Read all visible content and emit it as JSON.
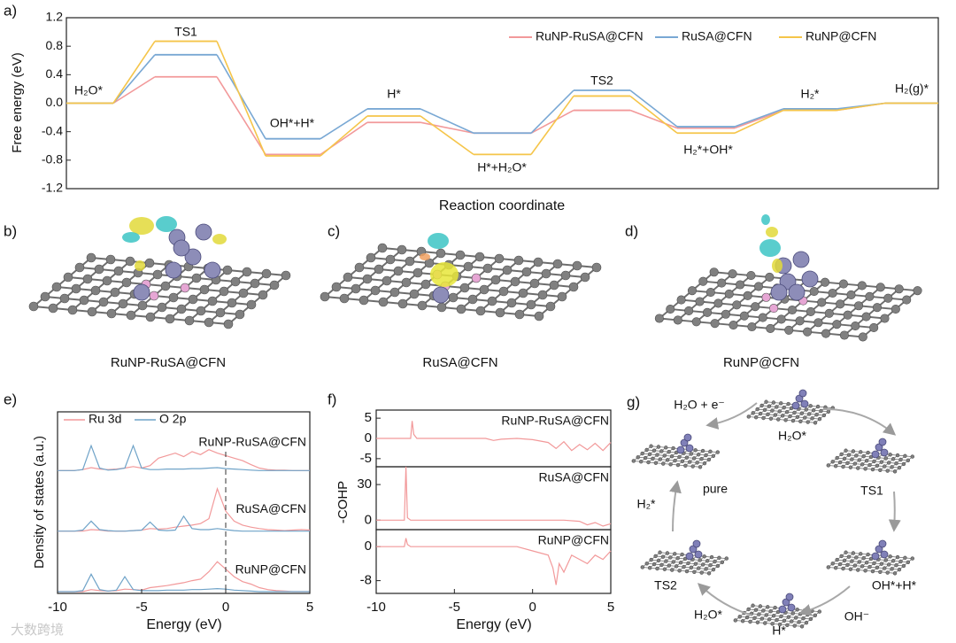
{
  "chart_data": [
    {
      "type": "line",
      "panel_label": "a)",
      "ylabel": "Free energy (eV)",
      "xlabel": "Reaction coordinate",
      "categories": [
        "H₂O*",
        "TS1",
        "OH*+H*",
        "H*",
        "H*+H₂O*",
        "TS2",
        "H₂*+OH*",
        "H₂*",
        "H₂(g)*"
      ],
      "ylim": [
        -1.2,
        1.2
      ],
      "yticks": [
        1.2,
        0.8,
        0.4,
        {
          "value": 0,
          "label": "0.0"
        },
        -0.4,
        -0.8,
        -1.2
      ],
      "series": [
        {
          "name": "RuNP-RuSA@CFN",
          "color": "#f2999a",
          "values": [
            0,
            0.37,
            -0.72,
            -0.27,
            -0.42,
            -0.1,
            -0.35,
            -0.1,
            0
          ]
        },
        {
          "name": "RuSA@CFN",
          "color": "#79a8d4",
          "values": [
            0,
            0.68,
            -0.5,
            -0.08,
            -0.42,
            0.18,
            -0.33,
            -0.08,
            0
          ]
        },
        {
          "name": "RuNP@CFN",
          "color": "#f5c54a",
          "values": [
            0,
            0.87,
            -0.74,
            -0.18,
            -0.72,
            0.1,
            -0.42,
            -0.1,
            0
          ]
        }
      ]
    },
    {
      "type": "stacked-line",
      "panel_label": "e)",
      "ylabel": "Density of states (a.u.)",
      "xlabel": "Energy (eV)",
      "xlim": [
        -10,
        5
      ],
      "xticks": [
        -10,
        -5,
        0,
        5
      ],
      "fermi_level": 0,
      "x": [
        -10,
        -9.5,
        -9,
        -8.5,
        -8,
        -7.5,
        -7,
        -6.5,
        -6,
        -5.5,
        -5,
        -4.5,
        -4,
        -3.5,
        -3,
        -2.5,
        -2,
        -1.5,
        -1,
        -0.5,
        0,
        0.5,
        1,
        1.5,
        2,
        2.5,
        3,
        3.5,
        4,
        4.5,
        5
      ],
      "panels": [
        {
          "label": "RuNP-RuSA@CFN",
          "ylim": [
            0,
            1
          ],
          "series": [
            {
              "name": "Ru 3d",
              "color": "#f2999a",
              "values": [
                0,
                0,
                0,
                0.02,
                0.06,
                0.03,
                0.02,
                0.03,
                0.05,
                0.08,
                0.05,
                0.1,
                0.25,
                0.3,
                0.35,
                0.28,
                0.38,
                0.32,
                0.42,
                0.35,
                0.3,
                0.25,
                0.2,
                0.12,
                0.05,
                0.02,
                0.01,
                0.01,
                0,
                0,
                0
              ]
            },
            {
              "name": "O 2p",
              "color": "#6fa3c8",
              "values": [
                0,
                0,
                0,
                0.02,
                0.5,
                0.05,
                0.01,
                0.02,
                0.05,
                0.5,
                0.05,
                0.02,
                0.02,
                0.03,
                0.03,
                0.03,
                0.04,
                0.04,
                0.05,
                0.06,
                0.04,
                0.03,
                0.02,
                0.01,
                0,
                0,
                0,
                0,
                0,
                0,
                0
              ]
            }
          ]
        },
        {
          "label": "RuSA@CFN",
          "ylim": [
            0,
            1
          ],
          "series": [
            {
              "name": "Ru 3d",
              "color": "#f2999a",
              "values": [
                0,
                0,
                0,
                0,
                0.03,
                0.02,
                0,
                0,
                0,
                0.01,
                0.02,
                0.05,
                0.04,
                0.05,
                0.08,
                0.1,
                0.12,
                0.15,
                0.25,
                0.85,
                0.4,
                0.2,
                0.12,
                0.08,
                0.05,
                0.03,
                0.02,
                0.01,
                0.02,
                0.03,
                0.02
              ]
            },
            {
              "name": "O 2p",
              "color": "#6fa3c8",
              "values": [
                0,
                0,
                0,
                0.02,
                0.2,
                0.03,
                0.01,
                0,
                0,
                0.01,
                0.02,
                0.18,
                0.02,
                0.01,
                0.02,
                0.3,
                0.05,
                0.03,
                0.03,
                0.05,
                0.03,
                0.01,
                0,
                0,
                0,
                0,
                0,
                0,
                0,
                0,
                0
              ]
            }
          ]
        },
        {
          "label": "RuNP@CFN",
          "ylim": [
            0,
            1
          ],
          "series": [
            {
              "name": "Ru 3d",
              "color": "#f2999a",
              "values": [
                0,
                0,
                0,
                0,
                0.04,
                0.02,
                0.01,
                0.02,
                0.05,
                0.04,
                0.03,
                0.08,
                0.1,
                0.12,
                0.15,
                0.18,
                0.22,
                0.25,
                0.4,
                0.6,
                0.45,
                0.3,
                0.2,
                0.15,
                0.08,
                0.04,
                0.02,
                0.01,
                0,
                0,
                0
              ]
            },
            {
              "name": "O 2p",
              "color": "#6fa3c8",
              "values": [
                0,
                0,
                0,
                0.02,
                0.35,
                0.04,
                0.01,
                0.03,
                0.3,
                0.04,
                0.02,
                0.02,
                0.02,
                0.03,
                0.03,
                0.03,
                0.04,
                0.04,
                0.05,
                0.06,
                0.05,
                0.03,
                0.02,
                0.01,
                0,
                0,
                0,
                0,
                0,
                0,
                0
              ]
            }
          ]
        }
      ]
    },
    {
      "type": "panel-line",
      "panel_label": "f)",
      "ylabel": "-COHP",
      "xlabel": "Energy (eV)",
      "xlim": [
        -10,
        5
      ],
      "xticks": [
        -10,
        -5,
        0,
        5
      ],
      "color": "#f2999a",
      "panels": [
        {
          "label": "RuNP-RuSA@CFN",
          "ylim": [
            -7,
            7
          ],
          "yticks": [
            -5,
            0,
            5
          ],
          "x": [
            -10,
            -7.8,
            -7.7,
            -7.6,
            -7.4,
            -3,
            -2.5,
            -2,
            -1,
            0,
            1,
            1.5,
            2,
            2.5,
            3,
            3.5,
            4,
            4.5,
            5
          ],
          "values": [
            0,
            0,
            4.3,
            1,
            0,
            0,
            -0.5,
            -0.2,
            0,
            -0.3,
            -1,
            -2.5,
            -0.8,
            -3,
            -1.5,
            -2.8,
            -1.2,
            -3,
            -1
          ]
        },
        {
          "label": "RuSA@CFN",
          "ylim": [
            -8,
            45
          ],
          "yticks": [
            0,
            30
          ],
          "x": [
            -10,
            -8.2,
            -8.1,
            -8,
            -7.8,
            2,
            3,
            3.5,
            4,
            4.5,
            5
          ],
          "values": [
            0,
            0,
            45,
            2,
            0,
            0,
            -1,
            -4,
            -2,
            -5,
            -3
          ]
        },
        {
          "label": "RuNP@CFN",
          "ylim": [
            -11,
            4
          ],
          "yticks": [
            0,
            -8
          ],
          "x": [
            -10,
            -8.2,
            -8.1,
            -8,
            -7.8,
            -1,
            0,
            1,
            1.3,
            1.5,
            1.7,
            2,
            2.5,
            3,
            3.5,
            4,
            4.5,
            5
          ],
          "values": [
            0,
            0,
            2,
            0.5,
            0,
            0,
            -1,
            -2,
            -5,
            -9,
            -4,
            -6,
            -2,
            -3,
            -4,
            -2,
            -3,
            -1
          ]
        }
      ]
    }
  ],
  "structures": [
    {
      "panel_label": "b)",
      "label": "RuNP-RuSA@CFN"
    },
    {
      "panel_label": "c)",
      "label": "RuSA@CFN"
    },
    {
      "panel_label": "d)",
      "label": "RuNP@CFN"
    }
  ],
  "cycle": {
    "panel_label": "g)",
    "labels": [
      "H₂O + e⁻",
      "H₂O*",
      "TS1",
      "OH*+H*",
      "OH⁻",
      "H*",
      "H₂O*",
      "TS2",
      "H₂*",
      "pure"
    ]
  },
  "watermark": "大数跨境"
}
